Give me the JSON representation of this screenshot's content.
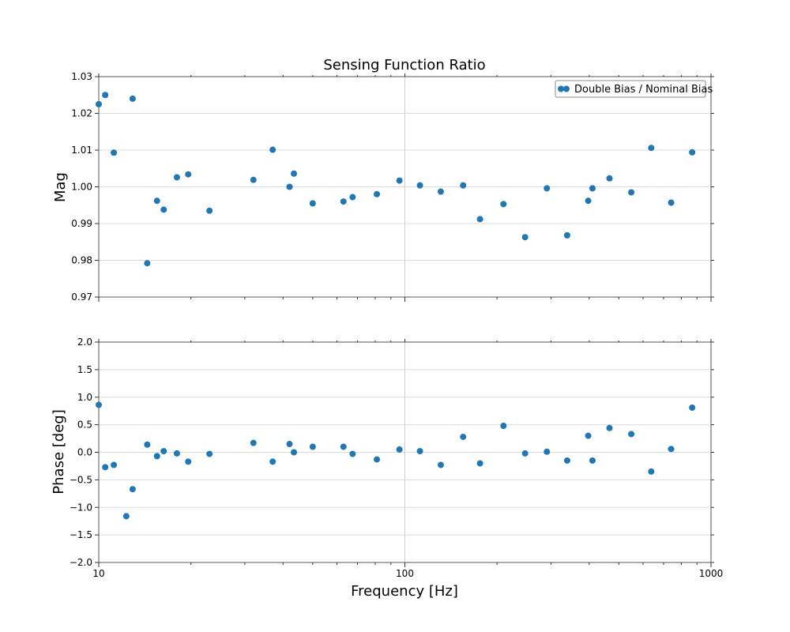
{
  "chart_data": {
    "type": "scatter",
    "title": "Sensing Function Ratio",
    "x_label": "Frequency [Hz]",
    "x_scale": "log",
    "xlim": [
      10,
      1000
    ],
    "x_tick_labels": [
      "10",
      "100",
      "1000"
    ],
    "x": [
      10.0,
      10.5,
      11.2,
      12.3,
      12.9,
      14.4,
      15.5,
      16.3,
      18.0,
      19.6,
      23.0,
      32.0,
      37.0,
      42.0,
      43.4,
      50.0,
      63.0,
      67.5,
      81.0,
      96.0,
      112.0,
      131.0,
      155.0,
      176.0,
      210.0,
      247.0,
      291.0,
      339.0,
      397.0,
      410.0,
      466.0,
      549.0,
      638.0,
      741.0,
      868.0
    ],
    "legend": {
      "location": "upper right",
      "entries": [
        "Double Bias / Nominal Bias"
      ]
    },
    "color": "#1f77b4",
    "panels": [
      {
        "ylabel": "Mag",
        "ylim": [
          0.97,
          1.03
        ],
        "y_tick_labels": [
          "0.97",
          "0.98",
          "0.99",
          "1.00",
          "1.01",
          "1.02",
          "1.03"
        ],
        "grid": true,
        "series": [
          {
            "name": "Double Bias / Nominal Bias",
            "x": [
              10.0,
              10.5,
              11.2,
              12.9,
              14.4,
              15.5,
              16.3,
              18.0,
              19.6,
              23.0,
              32.0,
              37.0,
              42.0,
              43.4,
              50.0,
              63.0,
              67.5,
              81.0,
              96.0,
              112.0,
              131.0,
              155.0,
              176.0,
              210.0,
              247.0,
              291.0,
              339.0,
              397.0,
              410.0,
              466.0,
              549.0,
              638.0,
              741.0,
              868.0
            ],
            "values": [
              1.0225,
              1.025,
              1.0093,
              1.024,
              0.9792,
              0.9962,
              0.9938,
              1.0026,
              1.0034,
              0.9935,
              1.0019,
              1.0101,
              1.0,
              1.0036,
              0.9955,
              0.996,
              0.9972,
              0.998,
              1.0017,
              1.0004,
              0.9987,
              1.0004,
              0.9912,
              0.9953,
              0.9863,
              0.9996,
              0.9868,
              0.9962,
              0.9996,
              1.0023,
              0.9985,
              1.0106,
              0.9957,
              1.0094
            ]
          }
        ]
      },
      {
        "ylabel": "Phase [deg]",
        "ylim": [
          -2.0,
          2.0
        ],
        "y_tick_labels": [
          "−2.0",
          "−1.5",
          "−1.0",
          "−0.5",
          "0.0",
          "0.5",
          "1.0",
          "1.5",
          "2.0"
        ],
        "grid": true,
        "series": [
          {
            "name": "Double Bias / Nominal Bias",
            "x": [
              10.0,
              10.5,
              11.2,
              12.3,
              12.9,
              14.4,
              15.5,
              16.3,
              18.0,
              19.6,
              23.0,
              32.0,
              37.0,
              42.0,
              43.4,
              50.0,
              63.0,
              67.5,
              81.0,
              96.0,
              112.0,
              131.0,
              155.0,
              176.0,
              210.0,
              247.0,
              291.0,
              339.0,
              397.0,
              410.0,
              466.0,
              549.0,
              638.0,
              741.0,
              868.0
            ],
            "values": [
              0.86,
              -0.27,
              -0.23,
              -1.16,
              -0.67,
              0.14,
              -0.07,
              0.02,
              -0.02,
              -0.17,
              -0.03,
              0.17,
              -0.17,
              0.15,
              0.0,
              0.1,
              0.1,
              -0.03,
              -0.13,
              0.05,
              0.02,
              -0.23,
              0.28,
              -0.2,
              0.48,
              -0.02,
              0.01,
              -0.15,
              0.3,
              -0.15,
              0.44,
              0.33,
              -0.35,
              0.06,
              0.81
            ]
          }
        ]
      }
    ]
  }
}
